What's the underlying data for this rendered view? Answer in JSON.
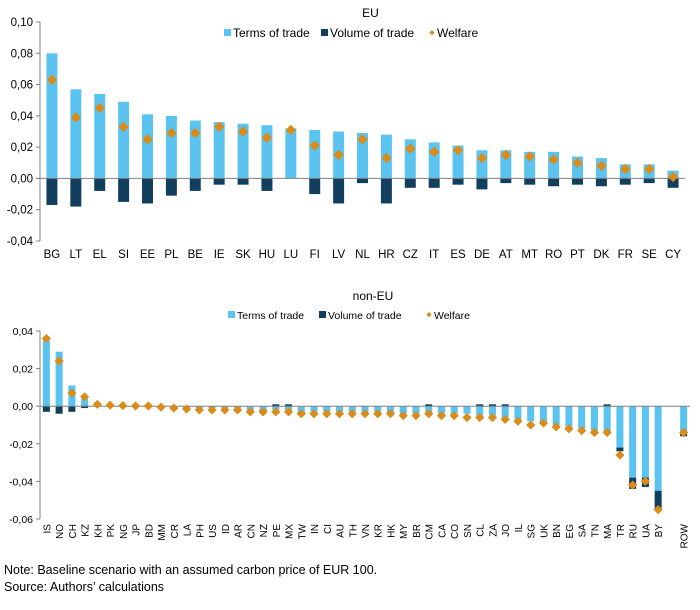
{
  "notes": {
    "note": "Note: Baseline scenario with an assumed carbon price of EUR 100.",
    "source": "Source: Authors’ calculations"
  },
  "colors": {
    "terms_of_trade": "#5bc3f0",
    "volume_of_trade": "#123f5e",
    "welfare": "#d98c1a"
  },
  "chart_data": [
    {
      "type": "bar",
      "title": "EU",
      "legend_position": "top-center",
      "ylim": [
        -0.04,
        0.1
      ],
      "yticks": [
        "0,10",
        "0,08",
        "0,06",
        "0,04",
        "0,02",
        "0,00",
        "-0,02",
        "-0,04"
      ],
      "ytick_values": [
        0.1,
        0.08,
        0.06,
        0.04,
        0.02,
        0.0,
        -0.02,
        -0.04
      ],
      "grid": false,
      "categories": [
        "BG",
        "LT",
        "EL",
        "SI",
        "EE",
        "PL",
        "BE",
        "IE",
        "SK",
        "HU",
        "LU",
        "FI",
        "LV",
        "NL",
        "HR",
        "CZ",
        "IT",
        "ES",
        "DE",
        "AT",
        "MT",
        "RO",
        "PT",
        "DK",
        "FR",
        "SE",
        "CY"
      ],
      "series": [
        {
          "name": "Terms of trade",
          "kind": "bar",
          "values": [
            0.08,
            0.057,
            0.054,
            0.049,
            0.041,
            0.04,
            0.037,
            0.036,
            0.035,
            0.034,
            0.032,
            0.031,
            0.03,
            0.029,
            0.028,
            0.025,
            0.023,
            0.021,
            0.018,
            0.018,
            0.017,
            0.017,
            0.014,
            0.013,
            0.009,
            0.009,
            0.005
          ]
        },
        {
          "name": "Volume of trade",
          "kind": "bar",
          "values": [
            -0.017,
            -0.018,
            -0.008,
            -0.015,
            -0.016,
            -0.011,
            -0.008,
            -0.004,
            -0.004,
            -0.008,
            0.0,
            -0.01,
            -0.016,
            -0.003,
            -0.016,
            -0.006,
            -0.006,
            -0.004,
            -0.007,
            -0.003,
            -0.004,
            -0.005,
            -0.004,
            -0.005,
            -0.004,
            -0.003,
            -0.006
          ]
        },
        {
          "name": "Welfare",
          "kind": "marker",
          "values": [
            0.063,
            0.039,
            0.045,
            0.033,
            0.025,
            0.029,
            0.029,
            0.033,
            0.03,
            0.026,
            0.031,
            0.021,
            0.015,
            0.025,
            0.013,
            0.019,
            0.017,
            0.018,
            0.013,
            0.015,
            0.014,
            0.012,
            0.01,
            0.008,
            0.006,
            0.006,
            0.001
          ]
        }
      ]
    },
    {
      "type": "bar",
      "title": "non-EU",
      "legend_position": "top-center",
      "ylim": [
        -0.06,
        0.04
      ],
      "yticks": [
        "0,04",
        "0,02",
        "0,00",
        "-0,02",
        "-0,04",
        "-0,06"
      ],
      "ytick_values": [
        0.04,
        0.02,
        0.0,
        -0.02,
        -0.04,
        -0.06
      ],
      "grid": false,
      "categories": [
        "IS",
        "NO",
        "CH",
        "KZ",
        "KH",
        "PK",
        "NG",
        "JP",
        "BD",
        "MM",
        "CR",
        "LA",
        "PH",
        "US",
        "ID",
        "AR",
        "CN",
        "NZ",
        "PE",
        "MX",
        "TW",
        "IN",
        "CI",
        "AU",
        "TH",
        "VN",
        "KR",
        "HK",
        "MY",
        "BR",
        "CM",
        "CA",
        "CO",
        "SN",
        "CL",
        "ZA",
        "JO",
        "IL",
        "SG",
        "UK",
        "BN",
        "EG",
        "SA",
        "TN",
        "MA",
        "TR",
        "RU",
        "UA",
        "BY",
        "",
        "ROW"
      ],
      "series": [
        {
          "name": "Terms of trade",
          "kind": "bar",
          "values": [
            0.035,
            0.029,
            0.011,
            0.004,
            0.001,
            0.0005,
            0.0003,
            0.0002,
            0.0002,
            0.0001,
            -0.0005,
            -0.001,
            -0.001,
            -0.001,
            -0.001,
            -0.001,
            -0.002,
            -0.002,
            -0.002,
            -0.002,
            -0.003,
            -0.003,
            -0.003,
            -0.003,
            -0.003,
            -0.003,
            -0.003,
            -0.004,
            -0.004,
            -0.004,
            -0.004,
            -0.004,
            -0.004,
            -0.004,
            -0.005,
            -0.005,
            -0.006,
            -0.007,
            -0.008,
            -0.009,
            -0.01,
            -0.011,
            -0.012,
            -0.013,
            -0.014,
            -0.022,
            -0.038,
            -0.038,
            -0.045,
            null,
            -0.014
          ]
        },
        {
          "name": "Volume of trade",
          "kind": "bar",
          "values": [
            -0.003,
            -0.004,
            -0.003,
            -0.001,
            0.0,
            0.0,
            0.0,
            0.0,
            0.0,
            0.0,
            0.0,
            0.0,
            0.0,
            0.0,
            0.0,
            0.0,
            0.0,
            -0.001,
            0.001,
            0.001,
            -0.001,
            0.0,
            0.0,
            0.0,
            0.0,
            0.0,
            0.0,
            0.0,
            0.0,
            0.0,
            0.001,
            0.0,
            0.0,
            0.0,
            0.001,
            0.001,
            0.001,
            0.0,
            0.0,
            0.0,
            0.0,
            0.0,
            0.0,
            0.0,
            0.001,
            -0.002,
            -0.006,
            -0.005,
            -0.01,
            null,
            -0.002
          ]
        },
        {
          "name": "Welfare",
          "kind": "marker",
          "values": [
            0.036,
            0.024,
            0.007,
            0.005,
            0.001,
            0.0005,
            0.0003,
            0.0001,
            0.0001,
            -0.0005,
            -0.001,
            -0.0015,
            -0.002,
            -0.002,
            -0.002,
            -0.002,
            -0.003,
            -0.003,
            -0.003,
            -0.003,
            -0.004,
            -0.004,
            -0.004,
            -0.004,
            -0.004,
            -0.004,
            -0.004,
            -0.004,
            -0.005,
            -0.005,
            -0.004,
            -0.005,
            -0.005,
            -0.006,
            -0.006,
            -0.006,
            -0.007,
            -0.008,
            -0.01,
            -0.009,
            -0.011,
            -0.012,
            -0.013,
            -0.014,
            -0.014,
            -0.026,
            -0.042,
            -0.04,
            -0.055,
            null,
            -0.014
          ]
        }
      ]
    }
  ]
}
